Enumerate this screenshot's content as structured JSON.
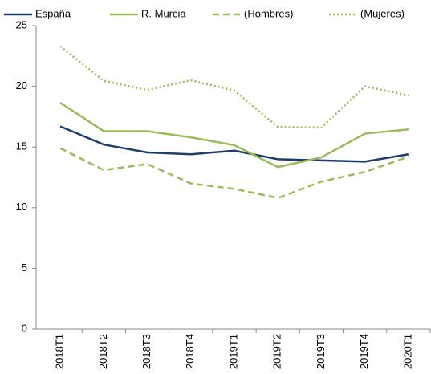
{
  "chart_data": {
    "type": "line",
    "categories": [
      "2018T1",
      "2018T2",
      "2018T3",
      "2018T4",
      "2019T1",
      "2019T2",
      "2019T3",
      "2019T4",
      "2020T1"
    ],
    "series": [
      {
        "name": "España",
        "color": "#1f3d6b",
        "line_style": "solid",
        "values": [
          16.7,
          15.2,
          14.55,
          14.4,
          14.7,
          14.0,
          13.9,
          13.8,
          14.4
        ]
      },
      {
        "name": "R. Murcia",
        "color": "#9bbb59",
        "line_style": "solid",
        "values": [
          18.65,
          16.3,
          16.3,
          15.8,
          15.15,
          13.35,
          14.15,
          16.1,
          16.45
        ]
      },
      {
        "name": "(Hombres)",
        "color": "#9bbb59",
        "line_style": "dashed",
        "values": [
          14.9,
          13.1,
          13.6,
          12.0,
          11.55,
          10.8,
          12.15,
          12.95,
          14.2
        ]
      },
      {
        "name": "(Mujeres)",
        "color": "#9bbb59",
        "line_style": "dotted",
        "values": [
          23.3,
          20.45,
          19.7,
          20.5,
          19.65,
          16.65,
          16.6,
          20.0,
          19.25
        ]
      }
    ],
    "ylim": [
      0,
      25
    ],
    "yticks": [
      0,
      5,
      10,
      15,
      20,
      25
    ],
    "grid": false,
    "legend": "top"
  }
}
